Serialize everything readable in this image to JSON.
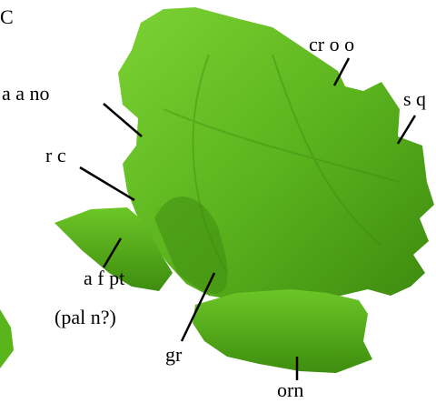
{
  "panel": "C",
  "labels": {
    "cr_o_o": "cr o o",
    "a_a_no": "a a no",
    "s_q": "s q",
    "r_c": "r c",
    "a_f_pt": "a f pt",
    "pal_n": "(pal n?)",
    "gr": "gr",
    "orn": "orn"
  }
}
